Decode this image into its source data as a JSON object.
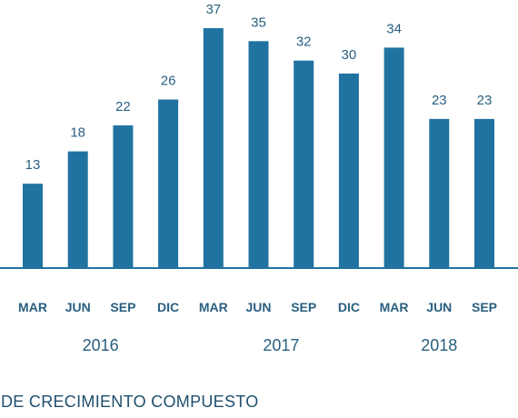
{
  "chart_data": {
    "type": "bar",
    "categories": [
      "MAR",
      "JUN",
      "SEP",
      "DIC",
      "MAR",
      "JUN",
      "SEP",
      "DIC",
      "MAR",
      "JUN",
      "SEP"
    ],
    "values": [
      13,
      18,
      22,
      26,
      37,
      35,
      32,
      30,
      34,
      23,
      23
    ],
    "years": [
      {
        "label": "2016",
        "start": 0,
        "end": 3
      },
      {
        "label": "2017",
        "start": 4,
        "end": 7
      },
      {
        "label": "2018",
        "start": 8,
        "end": 10
      }
    ],
    "ylim": [
      0,
      37
    ],
    "grid": false,
    "bar_color": "#2073a1"
  },
  "caption": "DE CRECIMIENTO COMPUESTO"
}
